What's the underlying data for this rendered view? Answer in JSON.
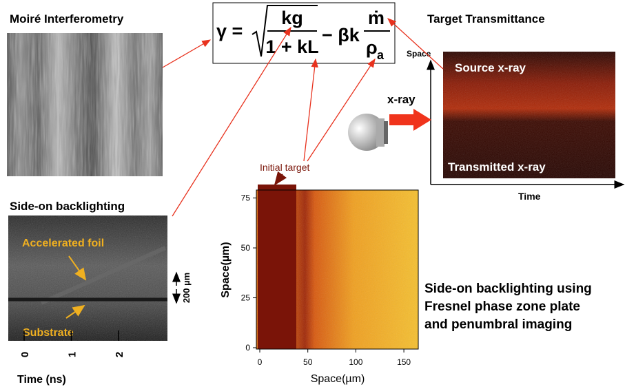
{
  "moire": {
    "title": "Moiré Interferometry"
  },
  "equation": {
    "lhs": "γ =",
    "num1": "kg",
    "den1": "1 + kL",
    "term2": "− βk",
    "num2": "ṁ",
    "den2": "ρ",
    "den2_sub": "a"
  },
  "transmittance": {
    "title": "Target Transmittance",
    "y_label": "Space",
    "x_label": "Time",
    "top_label": "Source x-ray",
    "bottom_label": "Transmitted x-ray",
    "source_label": "x-ray"
  },
  "side_on": {
    "title": "Side-on backlighting",
    "foil_label": "Accelerated foil",
    "substrate_label": "Substrate",
    "scale_label": "200 µm",
    "time_ticks": [
      0,
      1,
      2
    ],
    "x_label": "Time (ns)"
  },
  "plot": {
    "annotation": "Initial target",
    "x_label": "Space(µm)",
    "y_label": "Space(µm)",
    "xlim": [
      0,
      165
    ],
    "ylim": [
      0,
      79
    ],
    "xticks": [
      0,
      50,
      100,
      150
    ],
    "yticks": [
      0,
      25,
      50,
      75
    ]
  },
  "caption": [
    "Side-on backlighting using",
    "Fresnel phase zone plate",
    "and penumbral imaging"
  ]
}
